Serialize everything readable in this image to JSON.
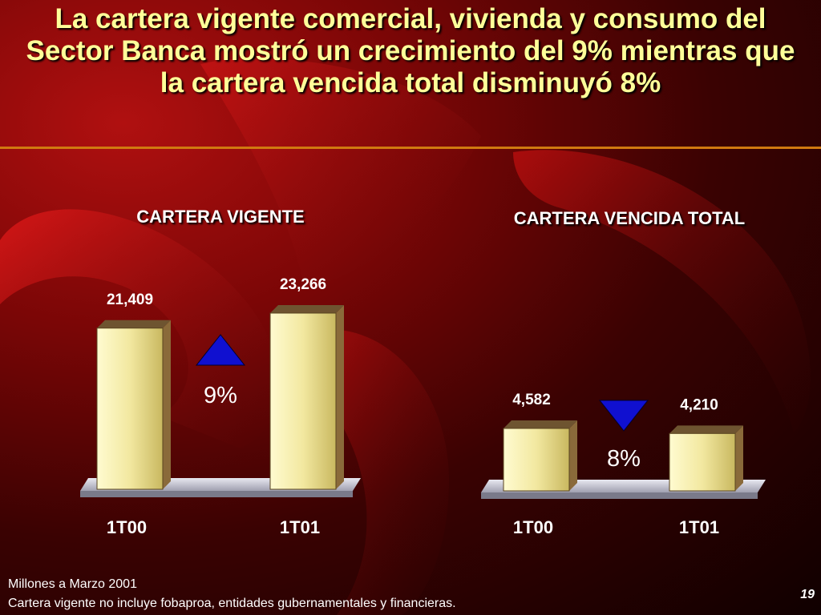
{
  "slide": {
    "title": "La cartera vigente comercial, vivienda y consumo del Sector Banca mostró un crecimiento del 9% mientras que la cartera vencida total disminuyó 8%",
    "footnote_1": "Millones a Marzo 2001",
    "footnote_2": "Cartera vigente no incluye fobaproa, entidades gubernamentales y financieras.",
    "page_number": "19"
  },
  "colors": {
    "title_text": "#ffff99",
    "bar_face": "#f2e8a0",
    "bar_side": "#8a6a3a",
    "arrow": "#1010d0",
    "rule": "#d07a10"
  },
  "chart_data": [
    {
      "type": "bar",
      "title": "CARTERA VIGENTE",
      "categories": [
        "1T00",
        "1T01"
      ],
      "values": [
        21409,
        23266
      ],
      "value_labels": [
        "21,409",
        "23,266"
      ],
      "change_label": "9%",
      "change_direction": "up",
      "arrow_icon": "triangle-up-icon"
    },
    {
      "type": "bar",
      "title": "CARTERA VENCIDA TOTAL",
      "categories": [
        "1T00",
        "1T01"
      ],
      "values": [
        4582,
        4210
      ],
      "value_labels": [
        "4,582",
        "4,210"
      ],
      "change_label": "8%",
      "change_direction": "down",
      "arrow_icon": "triangle-down-icon"
    }
  ]
}
